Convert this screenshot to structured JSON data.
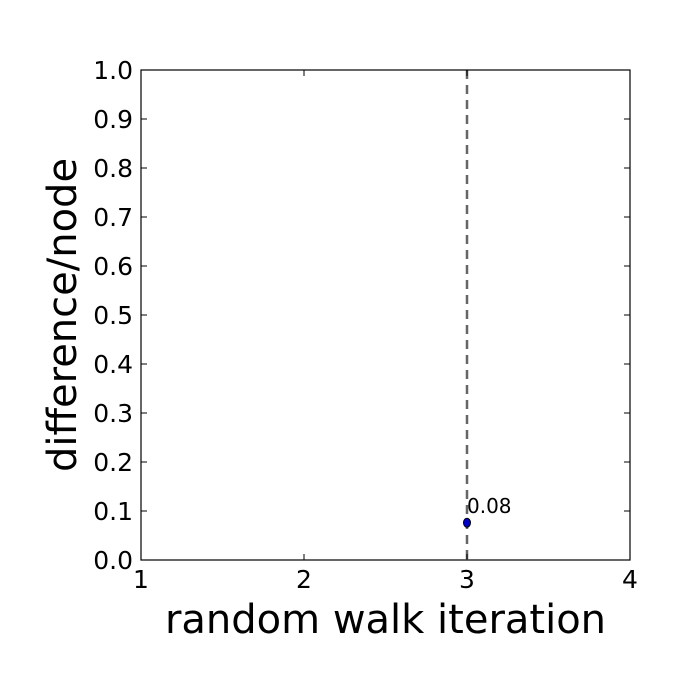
{
  "chart_data": {
    "type": "scatter",
    "title": "",
    "xlabel": "random walk iteration",
    "ylabel": "difference/node",
    "xlim": [
      1,
      4
    ],
    "ylim": [
      0.0,
      1.0
    ],
    "xticks": [
      1,
      2,
      3,
      4
    ],
    "xtick_labels": [
      "1",
      "2",
      "3",
      "4"
    ],
    "yticks": [
      0.0,
      0.1,
      0.2,
      0.3,
      0.4,
      0.5,
      0.6,
      0.7,
      0.8,
      0.9,
      1.0
    ],
    "ytick_labels": [
      "0.0",
      "0.1",
      "0.2",
      "0.3",
      "0.4",
      "0.5",
      "0.6",
      "0.7",
      "0.8",
      "0.9",
      "1.0"
    ],
    "grid": false,
    "legend": "none",
    "series": [
      {
        "points": [
          {
            "x": 3,
            "y": 0.076,
            "label": "0.08"
          }
        ],
        "color": "#0000cc"
      }
    ],
    "vertical_lines": [
      {
        "x": 3,
        "style": "dashed",
        "color": "#666666"
      }
    ]
  }
}
